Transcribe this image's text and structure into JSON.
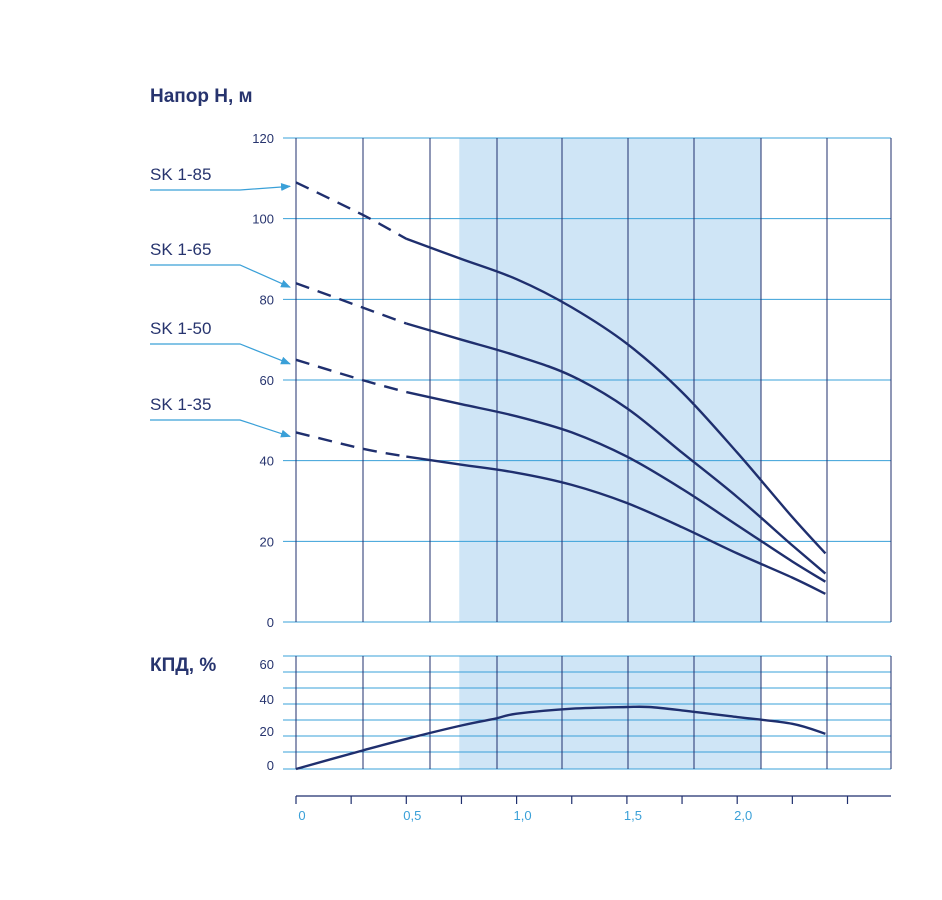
{
  "colors": {
    "curve": "#1f2f6e",
    "grid": "#3aa0d8",
    "zone_fill": "#cfe5f6",
    "title": "#27346e",
    "tick": "#27346e",
    "x_tick": "#3aa0d8",
    "label": "#27346e",
    "arrow": "#3aa0d8"
  },
  "chart_data": [
    {
      "type": "line",
      "title": "Напор H, м",
      "xlim": [
        0,
        2.7
      ],
      "ylim": [
        0,
        120
      ],
      "yticks": [
        "0",
        "20",
        "40",
        "60",
        "80",
        "100",
        "120"
      ],
      "ytick_values": [
        0,
        20,
        40,
        60,
        80,
        100,
        120
      ],
      "grid": true,
      "highlight_x_range": [
        0.74,
        2.11
      ],
      "dashed_until_x": 0.5,
      "series": [
        {
          "name": "SK 1-85",
          "x": [
            0,
            0.3,
            0.5,
            0.75,
            1.0,
            1.25,
            1.5,
            1.75,
            2.0,
            2.25,
            2.4
          ],
          "y": [
            109,
            101,
            95,
            90,
            85,
            78,
            69,
            57,
            42,
            26,
            17
          ]
        },
        {
          "name": "SK 1-65",
          "x": [
            0,
            0.3,
            0.5,
            0.75,
            1.0,
            1.25,
            1.5,
            1.75,
            2.0,
            2.25,
            2.4
          ],
          "y": [
            84,
            78,
            74,
            70,
            66,
            61,
            53,
            42,
            31,
            19,
            12
          ]
        },
        {
          "name": "SK 1-50",
          "x": [
            0,
            0.3,
            0.5,
            0.75,
            1.0,
            1.25,
            1.5,
            1.75,
            2.0,
            2.25,
            2.4
          ],
          "y": [
            65,
            60,
            57,
            54,
            51,
            47,
            41,
            33,
            24,
            15,
            10
          ]
        },
        {
          "name": "SK 1-35",
          "x": [
            0,
            0.3,
            0.5,
            0.75,
            1.0,
            1.25,
            1.5,
            1.75,
            2.0,
            2.25,
            2.4
          ],
          "y": [
            47,
            43,
            41,
            39,
            37,
            34,
            29.5,
            23.5,
            17,
            11,
            7
          ]
        }
      ]
    },
    {
      "type": "line",
      "title": "КПД, %",
      "xlim": [
        0,
        2.7
      ],
      "ylim": [
        0,
        70
      ],
      "yticks": [
        "0",
        "20",
        "40",
        "60"
      ],
      "ytick_values": [
        0,
        20,
        40,
        60
      ],
      "xticks": [
        "0",
        "0,5",
        "1,0",
        "1,5",
        "2,0"
      ],
      "xtick_values": [
        0,
        0.5,
        1.0,
        1.5,
        2.0
      ],
      "grid": true,
      "highlight_x_range": [
        0.74,
        2.11
      ],
      "series": [
        {
          "x": [
            0,
            0.3,
            0.5,
            0.75,
            0.9,
            1.0,
            1.25,
            1.5,
            1.6,
            1.75,
            2.0,
            2.25,
            2.4
          ],
          "y": [
            0,
            11,
            18,
            26,
            30,
            33,
            36,
            37,
            37,
            35,
            31,
            27,
            21
          ]
        }
      ]
    }
  ]
}
